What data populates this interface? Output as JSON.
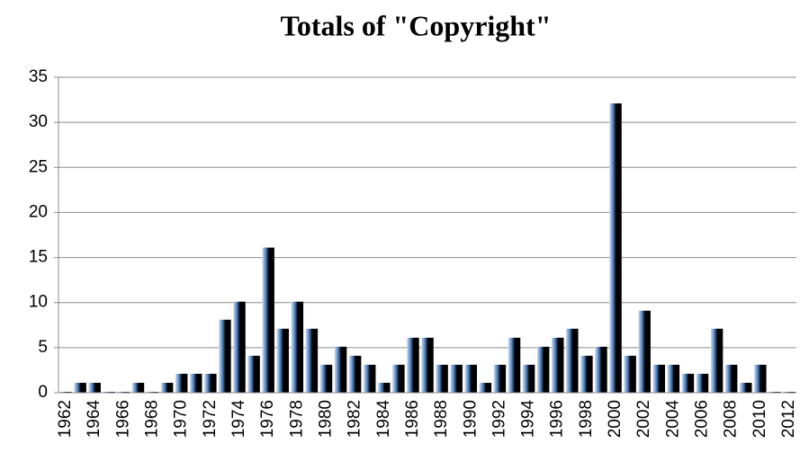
{
  "chart_data": {
    "type": "bar",
    "title": "Totals of \"Copyright\"",
    "categories": [
      "1962",
      null,
      "1964",
      null,
      "1966",
      null,
      "1968",
      null,
      "1970",
      null,
      "1972",
      null,
      "1974",
      null,
      "1976",
      null,
      "1978",
      null,
      "1980",
      null,
      "1982",
      null,
      "1984",
      null,
      "1986",
      null,
      "1988",
      null,
      "1990",
      null,
      "1992",
      null,
      "1994",
      null,
      "1996",
      null,
      "1998",
      null,
      "2000",
      null,
      "2002",
      null,
      "2004",
      null,
      "2006",
      null,
      "2008",
      null,
      "2010",
      null,
      "2012"
    ],
    "values": [
      0,
      1,
      1,
      0,
      0,
      1,
      0,
      1,
      2,
      2,
      2,
      8,
      10,
      4,
      16,
      7,
      10,
      7,
      3,
      5,
      4,
      3,
      1,
      3,
      6,
      6,
      3,
      3,
      3,
      1,
      3,
      6,
      3,
      5,
      6,
      7,
      4,
      5,
      32,
      4,
      9,
      3,
      3,
      2,
      2,
      7,
      3,
      1,
      3,
      0,
      0
    ],
    "color": "#4f81bd",
    "ylim": [
      0,
      35
    ],
    "yticks": [
      0,
      5,
      10,
      15,
      20,
      25,
      30,
      35
    ],
    "grid": true
  }
}
